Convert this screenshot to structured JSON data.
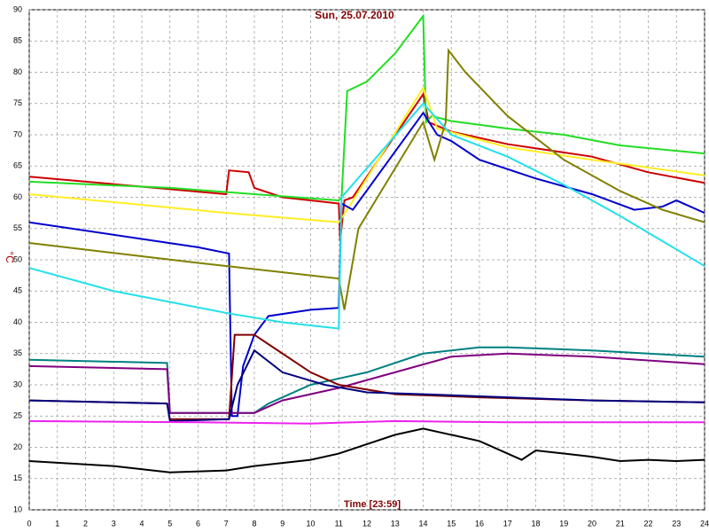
{
  "chart_data": {
    "type": "line",
    "title": "Sun, 25.07.2010",
    "xlabel": "Time [23:59]",
    "ylabel": "°C",
    "xlim": [
      0,
      24
    ],
    "xticks": [
      0,
      1,
      2,
      3,
      4,
      5,
      6,
      7,
      8,
      9,
      10,
      11,
      12,
      13,
      14,
      15,
      16,
      17,
      18,
      19,
      20,
      21,
      22,
      23,
      24
    ],
    "ylim": [
      10,
      90
    ],
    "yticks": [
      10,
      15,
      20,
      25,
      30,
      35,
      40,
      45,
      50,
      55,
      60,
      65,
      70,
      75,
      80,
      85,
      90
    ],
    "grid": true,
    "series": [
      {
        "color": "#cc0000",
        "x": [
          0,
          7,
          7.1,
          7.8,
          8,
          9,
          10,
          11,
          11.05,
          11.2,
          11.5,
          14,
          14.2,
          15,
          17,
          20,
          22,
          24
        ],
        "values": [
          63.3,
          60.5,
          64.3,
          64,
          61.5,
          60,
          59.5,
          59,
          53,
          59.5,
          60,
          76.5,
          72,
          70.5,
          68.5,
          66.5,
          64,
          62.3
        ]
      },
      {
        "color": "#22dd22",
        "x": [
          0,
          5,
          8,
          11,
          11.1,
          11.3,
          12,
          13,
          14,
          14.1,
          14.3,
          15,
          17,
          19,
          21,
          24
        ],
        "values": [
          62.5,
          61.5,
          60.5,
          59.5,
          60,
          77,
          78.5,
          83,
          89,
          72,
          73,
          72.2,
          71,
          70,
          68.3,
          67
        ]
      },
      {
        "color": "#ffee22",
        "x": [
          0,
          7,
          11,
          11.3,
          14,
          14.5,
          17,
          20,
          24
        ],
        "values": [
          60.5,
          57.5,
          56,
          58,
          77.5,
          71,
          68,
          66,
          63.5
        ]
      },
      {
        "color": "#0000cc",
        "x": [
          0,
          6,
          7.1,
          7.2,
          7.4,
          7.6,
          8,
          8.5,
          10,
          11,
          11.1,
          11.5,
          14,
          14.5,
          15,
          16,
          18,
          20,
          21.5,
          22.5,
          23,
          24
        ],
        "values": [
          56,
          52,
          51,
          25,
          25,
          33,
          38,
          41,
          42,
          42.3,
          59,
          58,
          73.5,
          70,
          69,
          66,
          63,
          60.5,
          58,
          58.5,
          59.5,
          57.5
        ]
      },
      {
        "color": "#808000",
        "x": [
          0,
          6,
          11,
          11.2,
          11.7,
          14,
          14.4,
          14.8,
          14.9,
          15.5,
          17,
          19,
          21,
          22.5,
          24
        ],
        "values": [
          52.7,
          49.5,
          47,
          42,
          55,
          72,
          66,
          72,
          83.5,
          80,
          73,
          66,
          61,
          58,
          56
        ]
      },
      {
        "color": "#22e0e8",
        "x": [
          0,
          3,
          7,
          9,
          11,
          11.1,
          14,
          15,
          17,
          19,
          21,
          22.5,
          24
        ],
        "values": [
          48.7,
          45,
          41.5,
          40,
          39,
          60,
          75,
          70,
          66.5,
          62,
          57,
          53,
          49
        ]
      },
      {
        "color": "#008080",
        "x": [
          0,
          4.9,
          5,
          8,
          8.5,
          10,
          12,
          14,
          16,
          17,
          20,
          24
        ],
        "values": [
          34,
          33.5,
          25.5,
          25.5,
          27,
          30,
          32,
          35,
          36,
          36,
          35.5,
          34.5
        ]
      },
      {
        "color": "#800080",
        "x": [
          0,
          4.9,
          5,
          8,
          9,
          11,
          13,
          15,
          17,
          20,
          24
        ],
        "values": [
          33,
          32.5,
          25.5,
          25.5,
          27.5,
          29.5,
          32,
          34.5,
          35,
          34.5,
          33.3
        ]
      },
      {
        "color": "#800000",
        "x": [
          0,
          4.9,
          5,
          7.1,
          7.3,
          8,
          9,
          10,
          11,
          13,
          16,
          20,
          24
        ],
        "values": [
          27.5,
          27,
          24.5,
          24.5,
          38,
          38,
          35,
          32,
          30,
          28.5,
          28,
          27.5,
          27.2
        ]
      },
      {
        "color": "#000080",
        "x": [
          0,
          4.9,
          5,
          7.1,
          7.4,
          8,
          9,
          10.5,
          12,
          14,
          17,
          20,
          24
        ],
        "values": [
          27.5,
          27,
          24.2,
          24.5,
          30,
          35.5,
          32,
          30,
          28.8,
          28.5,
          28,
          27.5,
          27.2
        ]
      },
      {
        "color": "#ee22ee",
        "x": [
          0,
          6,
          10,
          13,
          17,
          24
        ],
        "values": [
          24.2,
          24,
          23.8,
          24.2,
          24,
          24
        ]
      },
      {
        "color": "#000000",
        "x": [
          0,
          3,
          5,
          7,
          8,
          10,
          11,
          12,
          13,
          14,
          15,
          16,
          17,
          17.5,
          18,
          19,
          20,
          21,
          22,
          23,
          24
        ],
        "values": [
          17.8,
          17,
          16,
          16.3,
          17,
          18,
          19,
          20.5,
          22,
          23,
          22,
          21,
          19,
          18,
          19.5,
          19,
          18.5,
          17.8,
          18,
          17.8,
          18
        ]
      }
    ]
  }
}
